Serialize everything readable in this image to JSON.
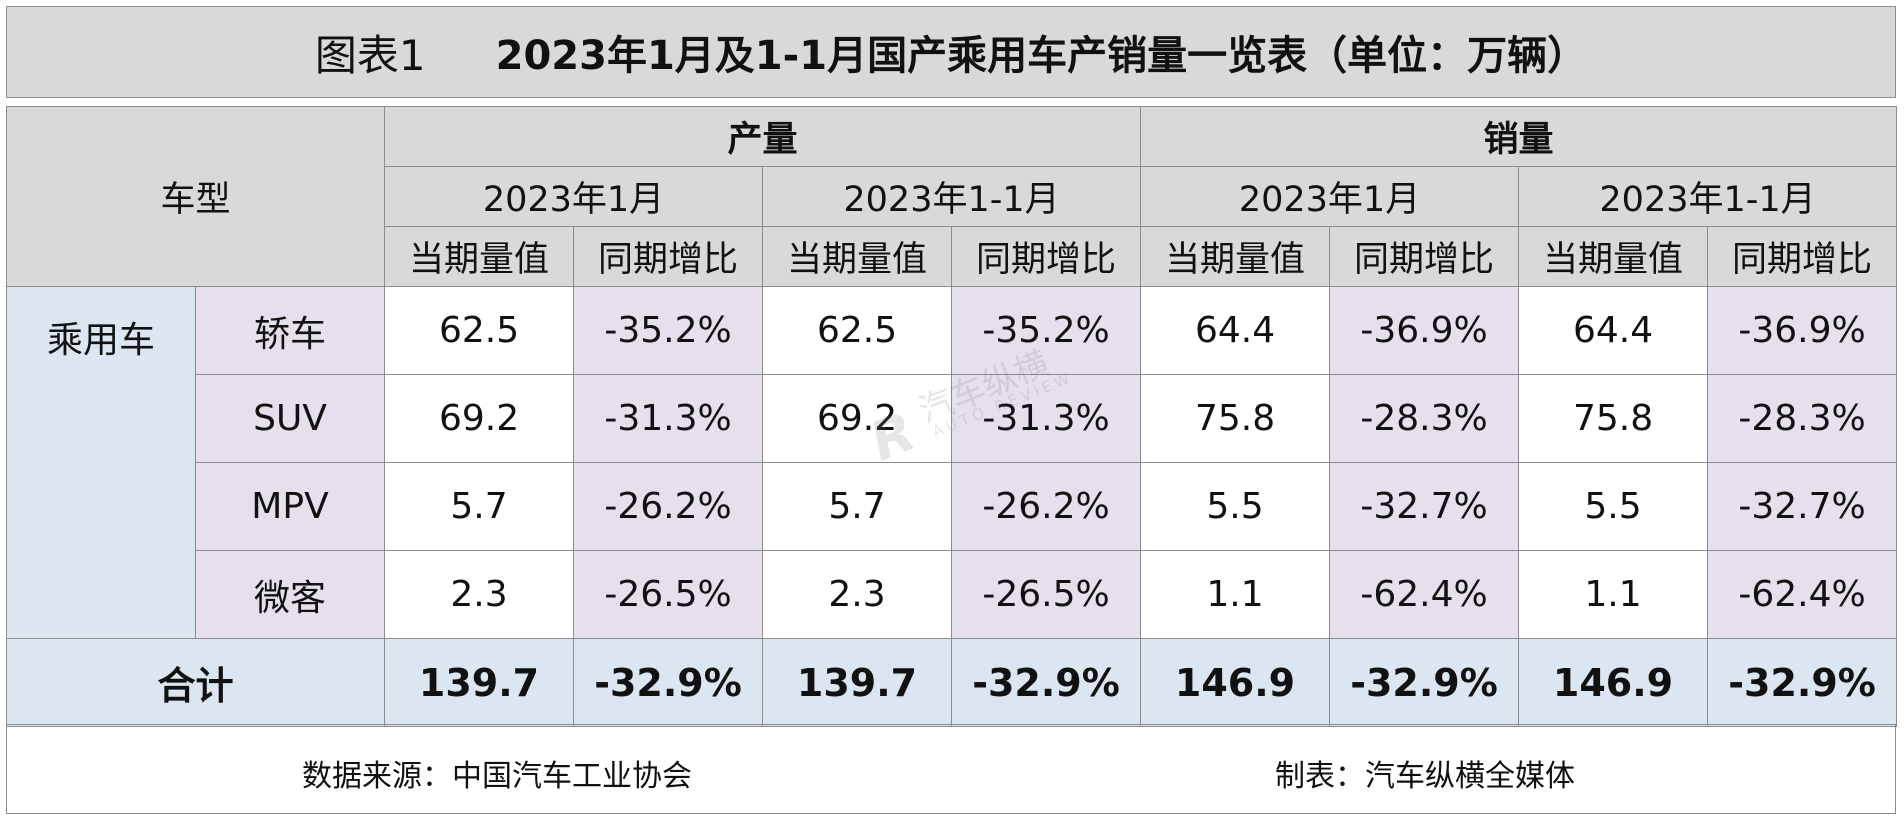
{
  "title": {
    "label": "图表1",
    "text": "2023年1月及1-1月国产乘用车产销量一览表（单位：万辆）"
  },
  "headers": {
    "vehicle_type": "车型",
    "groups": [
      "产量",
      "销量"
    ],
    "periods": [
      "2023年1月",
      "2023年1-1月",
      "2023年1月",
      "2023年1-1月"
    ],
    "metrics": [
      "当期量值",
      "同期增比",
      "当期量值",
      "同期增比",
      "当期量值",
      "同期增比",
      "当期量值",
      "同期增比"
    ]
  },
  "category": "乘用车",
  "rows": [
    {
      "type": "轿车",
      "cells": [
        "62.5",
        "-35.2%",
        "62.5",
        "-35.2%",
        "64.4",
        "-36.9%",
        "64.4",
        "-36.9%"
      ]
    },
    {
      "type": "SUV",
      "cells": [
        "69.2",
        "-31.3%",
        "69.2",
        "-31.3%",
        "75.8",
        "-28.3%",
        "75.8",
        "-28.3%"
      ]
    },
    {
      "type": "MPV",
      "cells": [
        "5.7",
        "-26.2%",
        "5.7",
        "-26.2%",
        "5.5",
        "-32.7%",
        "5.5",
        "-32.7%"
      ]
    },
    {
      "type": "微客",
      "cells": [
        "2.3",
        "-26.5%",
        "2.3",
        "-26.5%",
        "1.1",
        "-62.4%",
        "1.1",
        "-62.4%"
      ]
    }
  ],
  "total": {
    "label": "合计",
    "cells": [
      "139.7",
      "-32.9%",
      "139.7",
      "-32.9%",
      "146.9",
      "-32.9%",
      "146.9",
      "-32.9%"
    ]
  },
  "footer": {
    "source": "数据来源：中国汽车工业协会",
    "maker": "制表：汽车纵横全媒体"
  },
  "watermark": {
    "cn": "汽车纵横",
    "en": "AUTO REVIEW"
  },
  "colors": {
    "header_gray": "#d9d9d9",
    "category_blue": "#dce6f0",
    "type_purple": "#e6e0ec",
    "border": "#8c8c8c"
  },
  "chart_data": {
    "type": "table",
    "title": "2023年1月及1-1月国产乘用车产销量一览表（单位：万辆）",
    "columns": [
      "产量 2023年1月 当期量值",
      "产量 2023年1月 同期增比",
      "产量 2023年1-1月 当期量值",
      "产量 2023年1-1月 同期增比",
      "销量 2023年1月 当期量值",
      "销量 2023年1月 同期增比",
      "销量 2023年1-1月 当期量值",
      "销量 2023年1-1月 同期增比"
    ],
    "rows": [
      "轿车",
      "SUV",
      "MPV",
      "微客",
      "合计"
    ],
    "values": [
      [
        62.5,
        -35.2,
        62.5,
        -35.2,
        64.4,
        -36.9,
        64.4,
        -36.9
      ],
      [
        69.2,
        -31.3,
        69.2,
        -31.3,
        75.8,
        -28.3,
        75.8,
        -28.3
      ],
      [
        5.7,
        -26.2,
        5.7,
        -26.2,
        5.5,
        -32.7,
        5.5,
        -32.7
      ],
      [
        2.3,
        -26.5,
        2.3,
        -26.5,
        1.1,
        -62.4,
        1.1,
        -62.4
      ],
      [
        139.7,
        -32.9,
        139.7,
        -32.9,
        146.9,
        -32.9,
        146.9,
        -32.9
      ]
    ]
  }
}
